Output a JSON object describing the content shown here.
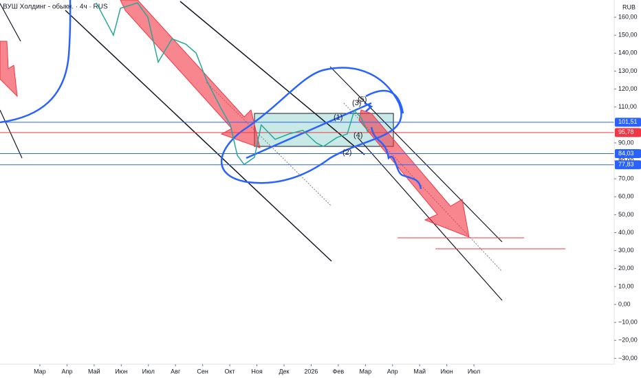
{
  "chart_data": {
    "type": "line",
    "title": "ВУШ Холдинг - обыкн. · 4ч · RUS",
    "currency": "RUB",
    "x": [
      2.08,
      2.71,
      2.97,
      3.6,
      3.98,
      4.36,
      4.87,
      5.38,
      5.76,
      6.14,
      6.65,
      7.02,
      7.28,
      7.53,
      7.91,
      8.16,
      8.67,
      9.18,
      9.69,
      10.19,
      10.45,
      10.95,
      11.33,
      11.59,
      11.84,
      12.09
    ],
    "series": [
      {
        "name": "ВУШ",
        "color": "#26a69a",
        "values": [
          168,
          150,
          165,
          168,
          160,
          135,
          148,
          145,
          140,
          125,
          110,
          100,
          83,
          78,
          82,
          100,
          92,
          95,
          97,
          90,
          88,
          93,
          95,
          108,
          104,
          96
        ]
      }
    ],
    "xlim": [
      -1.47,
      21.17
    ],
    "xticks": [
      {
        "value": 0,
        "label": "Мар"
      },
      {
        "value": 1,
        "label": "Апр"
      },
      {
        "value": 2,
        "label": "Май"
      },
      {
        "value": 3,
        "label": "Июн"
      },
      {
        "value": 4,
        "label": "Июл"
      },
      {
        "value": 5,
        "label": "Авг"
      },
      {
        "value": 6,
        "label": "Сен"
      },
      {
        "value": 7,
        "label": "Окт"
      },
      {
        "value": 8,
        "label": "Ноя"
      },
      {
        "value": 9,
        "label": "Дек"
      },
      {
        "value": 10,
        "label": "2026"
      },
      {
        "value": 11,
        "label": "Фев"
      },
      {
        "value": 12,
        "label": "Мар"
      },
      {
        "value": 13,
        "label": "Апр"
      },
      {
        "value": 14,
        "label": "Май"
      },
      {
        "value": 15,
        "label": "Июн"
      },
      {
        "value": 16,
        "label": "Июл"
      }
    ],
    "ylim": [
      -33.3,
      169.6
    ],
    "yticks": [
      {
        "value": 160,
        "label": "160,00"
      },
      {
        "value": 150,
        "label": "150,00"
      },
      {
        "value": 140,
        "label": "140,00"
      },
      {
        "value": 130,
        "label": "130,00"
      },
      {
        "value": 120,
        "label": "120,00"
      },
      {
        "value": 110,
        "label": "110,00"
      },
      {
        "value": 90,
        "label": "90,00"
      },
      {
        "value": 80,
        "label": "80,00"
      },
      {
        "value": 70,
        "label": "70,00"
      },
      {
        "value": 60,
        "label": "60,00"
      },
      {
        "value": 50,
        "label": "50,00"
      },
      {
        "value": 40,
        "label": "40,00"
      },
      {
        "value": 30,
        "label": "30,00"
      },
      {
        "value": 20,
        "label": "20,00"
      },
      {
        "value": 10,
        "label": "10,00"
      },
      {
        "value": 0,
        "label": "0,00"
      },
      {
        "value": -10,
        "label": "−10,00"
      },
      {
        "value": -20,
        "label": "−20,00"
      },
      {
        "value": -30,
        "label": "−30,00"
      }
    ],
    "price_lines": [
      {
        "value": 101.51,
        "label": "101,51",
        "color": "#2962ff"
      },
      {
        "value": 95.78,
        "label": "95,78",
        "color": "#f23645"
      },
      {
        "value": 84.03,
        "label": "84,03",
        "color": "#2962ff"
      },
      {
        "value": 77.83,
        "label": "77,83",
        "color": "#2962ff"
      }
    ],
    "annotations": [
      "(1)",
      "(2)",
      "(3)",
      "(4)",
      "(5)"
    ]
  }
}
